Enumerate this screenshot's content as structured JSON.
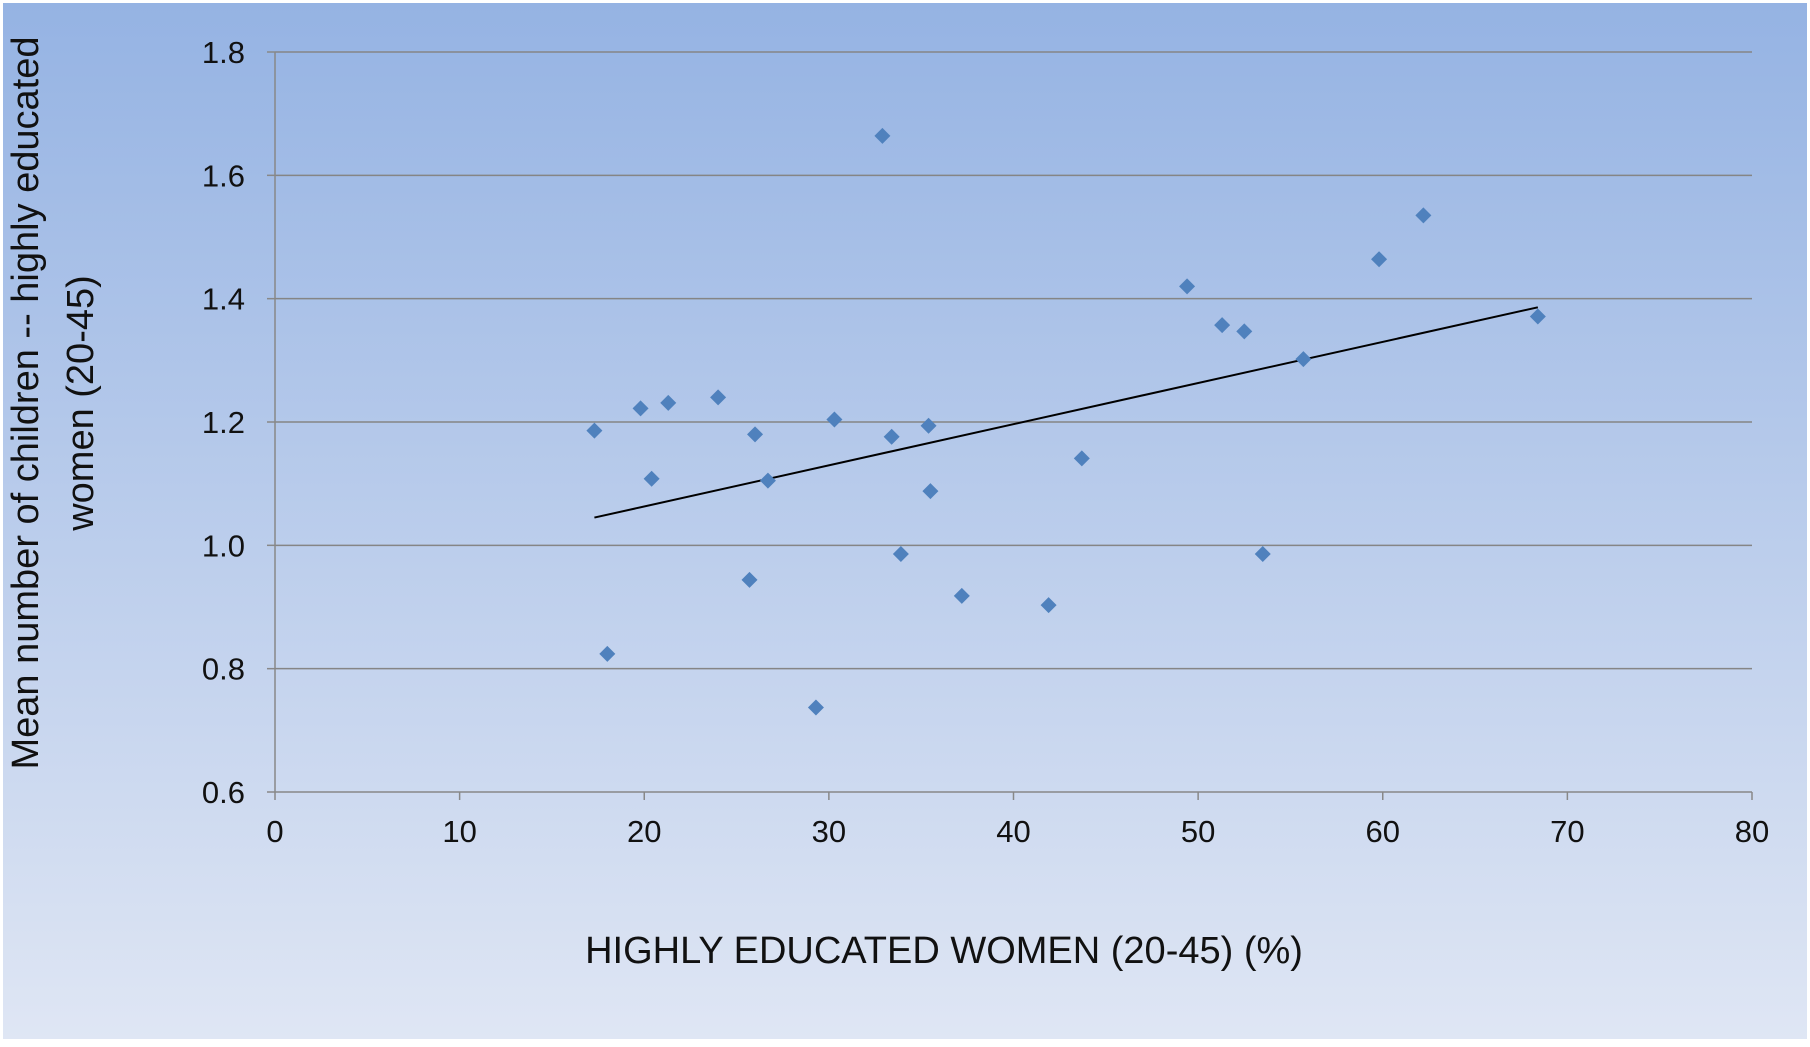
{
  "chart_data": {
    "type": "scatter",
    "title": "",
    "xlabel": "HIGHLY EDUCATED WOMEN (20-45) (%)",
    "ylabel_lines": [
      "Mean number of children -- highly educated",
      "women (20-45)"
    ],
    "xlim": [
      0,
      80
    ],
    "ylim": [
      0.6,
      1.8
    ],
    "x_ticks": [
      0,
      10,
      20,
      30,
      40,
      50,
      60,
      70,
      80
    ],
    "y_ticks": [
      0.6,
      0.8,
      1.0,
      1.2,
      1.4,
      1.6,
      1.8
    ],
    "x_tick_labels": [
      "0",
      "10",
      "20",
      "30",
      "40",
      "50",
      "60",
      "70",
      "80"
    ],
    "y_tick_labels": [
      "0.6",
      "0.8",
      "1.0",
      "1.2",
      "1.4",
      "1.6",
      "1.8"
    ],
    "grid": "horizontal",
    "legend": "none",
    "marker": "diamond",
    "points": [
      {
        "x": 17.3,
        "y": 1.186
      },
      {
        "x": 18.0,
        "y": 0.824
      },
      {
        "x": 19.8,
        "y": 1.222
      },
      {
        "x": 20.4,
        "y": 1.108
      },
      {
        "x": 21.3,
        "y": 1.231
      },
      {
        "x": 24.0,
        "y": 1.24
      },
      {
        "x": 25.7,
        "y": 0.944
      },
      {
        "x": 26.0,
        "y": 1.18
      },
      {
        "x": 26.7,
        "y": 1.105
      },
      {
        "x": 29.3,
        "y": 0.737
      },
      {
        "x": 30.3,
        "y": 1.204
      },
      {
        "x": 32.9,
        "y": 1.664
      },
      {
        "x": 33.4,
        "y": 1.176
      },
      {
        "x": 33.9,
        "y": 0.986
      },
      {
        "x": 35.4,
        "y": 1.194
      },
      {
        "x": 35.5,
        "y": 1.088
      },
      {
        "x": 37.2,
        "y": 0.918
      },
      {
        "x": 41.9,
        "y": 0.903
      },
      {
        "x": 43.7,
        "y": 1.141
      },
      {
        "x": 49.4,
        "y": 1.42
      },
      {
        "x": 51.3,
        "y": 1.357
      },
      {
        "x": 52.5,
        "y": 1.347
      },
      {
        "x": 53.5,
        "y": 0.986
      },
      {
        "x": 55.7,
        "y": 1.302
      },
      {
        "x": 59.8,
        "y": 1.464
      },
      {
        "x": 62.2,
        "y": 1.535
      },
      {
        "x": 68.4,
        "y": 1.371
      }
    ],
    "trendline": {
      "x": [
        17.3,
        68.4
      ],
      "y": [
        1.045,
        1.386
      ]
    },
    "colors": {
      "marker": "#4f81bd",
      "trendline": "#000000",
      "gridline": "#858585",
      "axis": "#888888",
      "background_top": "#95b3e3",
      "background_bottom": "#dfe6f4"
    }
  }
}
